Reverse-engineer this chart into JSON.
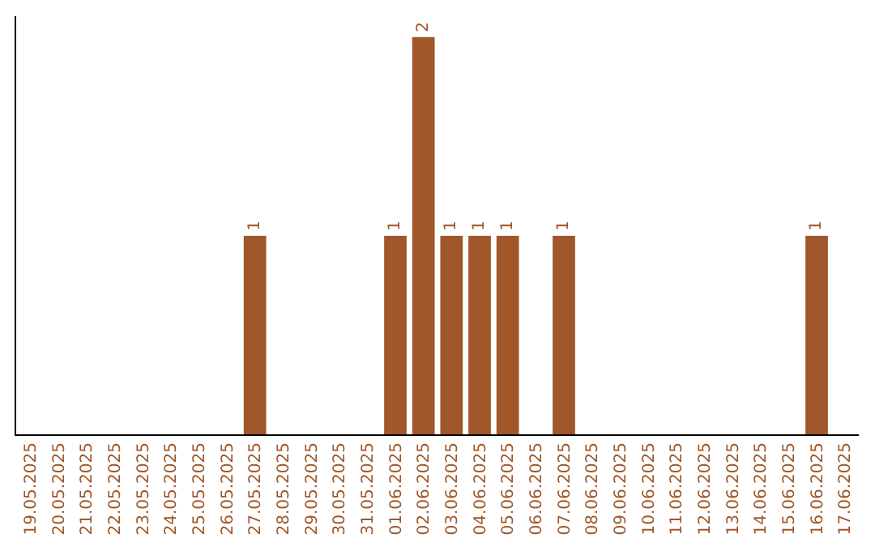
{
  "chart_data": {
    "type": "bar",
    "categories": [
      "19.05.2025",
      "20.05.2025",
      "21.05.2025",
      "22.05.2025",
      "23.05.2025",
      "24.05.2025",
      "25.05.2025",
      "26.05.2025",
      "27.05.2025",
      "28.05.2025",
      "29.05.2025",
      "30.05.2025",
      "31.05.2025",
      "01.06.2025",
      "02.06.2025",
      "03.06.2025",
      "04.06.2025",
      "05.06.2025",
      "06.06.2025",
      "07.06.2025",
      "08.06.2025",
      "09.06.2025",
      "10.06.2025",
      "11.06.2025",
      "12.06.2025",
      "13.06.2025",
      "14.06.2025",
      "15.06.2025",
      "16.06.2025",
      "17.06.2025"
    ],
    "values": [
      0,
      0,
      0,
      0,
      0,
      0,
      0,
      0,
      1,
      0,
      0,
      0,
      0,
      1,
      2,
      1,
      1,
      1,
      0,
      1,
      0,
      0,
      0,
      0,
      0,
      0,
      0,
      0,
      1,
      0
    ],
    "value_labels": [
      null,
      null,
      null,
      null,
      null,
      null,
      null,
      null,
      "1",
      null,
      null,
      null,
      null,
      "1",
      "2",
      "1",
      "1",
      "1",
      null,
      "1",
      null,
      null,
      null,
      null,
      null,
      null,
      null,
      null,
      "1",
      null
    ],
    "color": "#a0572a",
    "tick_labels": "x",
    "grid": false,
    "legend": false
  }
}
